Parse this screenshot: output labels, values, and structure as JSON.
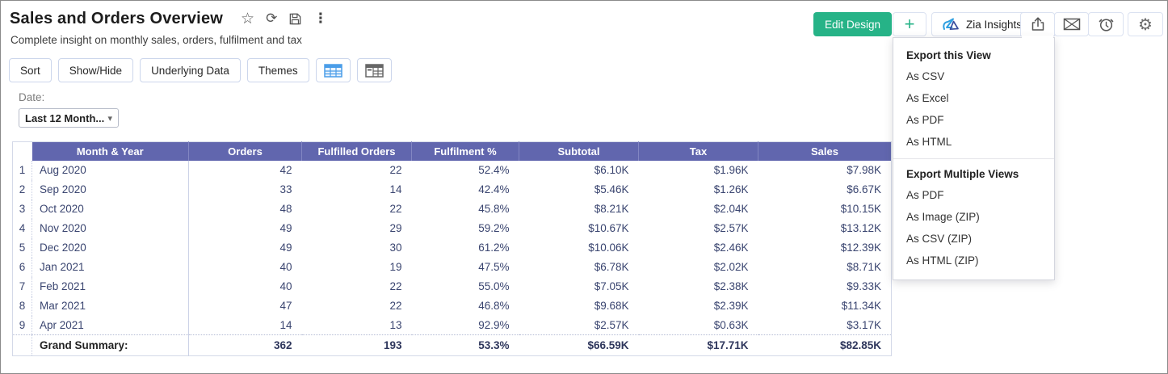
{
  "header": {
    "title": "Sales and Orders Overview",
    "subtitle": "Complete insight on monthly sales, orders, fulfilment and tax"
  },
  "icons": {
    "star": "☆",
    "refresh": "⟳",
    "kebab": "⋮",
    "gear": "⚙",
    "plus": "+",
    "caret_down": "▾"
  },
  "toolbar": {
    "buttons": [
      "Sort",
      "Show/Hide",
      "Underlying Data",
      "Themes"
    ]
  },
  "actions": {
    "edit_design_label": "Edit Design",
    "zia_label": "Zia Insights"
  },
  "filter": {
    "label": "Date:",
    "value": "Last 12 Month..."
  },
  "export_menu": {
    "sections": [
      {
        "header": "Export this View",
        "items": [
          "As CSV",
          "As Excel",
          "As PDF",
          "As HTML"
        ]
      },
      {
        "header": "Export Multiple Views",
        "items": [
          "As PDF",
          "As Image (ZIP)",
          "As CSV (ZIP)",
          "As HTML (ZIP)"
        ]
      }
    ]
  },
  "table": {
    "columns": [
      "Month & Year",
      "Orders",
      "Fulfilled Orders",
      "Fulfilment %",
      "Subtotal",
      "Tax",
      "Sales"
    ],
    "rows": [
      {
        "num": "1",
        "month": "Aug 2020",
        "orders": "42",
        "fulfilled": "22",
        "fulfilment": "52.4%",
        "subtotal": "$6.10K",
        "tax": "$1.96K",
        "sales": "$7.98K"
      },
      {
        "num": "2",
        "month": "Sep 2020",
        "orders": "33",
        "fulfilled": "14",
        "fulfilment": "42.4%",
        "subtotal": "$5.46K",
        "tax": "$1.26K",
        "sales": "$6.67K"
      },
      {
        "num": "3",
        "month": "Oct 2020",
        "orders": "48",
        "fulfilled": "22",
        "fulfilment": "45.8%",
        "subtotal": "$8.21K",
        "tax": "$2.04K",
        "sales": "$10.15K"
      },
      {
        "num": "4",
        "month": "Nov 2020",
        "orders": "49",
        "fulfilled": "29",
        "fulfilment": "59.2%",
        "subtotal": "$10.67K",
        "tax": "$2.57K",
        "sales": "$13.12K"
      },
      {
        "num": "5",
        "month": "Dec 2020",
        "orders": "49",
        "fulfilled": "30",
        "fulfilment": "61.2%",
        "subtotal": "$10.06K",
        "tax": "$2.46K",
        "sales": "$12.39K"
      },
      {
        "num": "6",
        "month": "Jan 2021",
        "orders": "40",
        "fulfilled": "19",
        "fulfilment": "47.5%",
        "subtotal": "$6.78K",
        "tax": "$2.02K",
        "sales": "$8.71K"
      },
      {
        "num": "7",
        "month": "Feb 2021",
        "orders": "40",
        "fulfilled": "22",
        "fulfilment": "55.0%",
        "subtotal": "$7.05K",
        "tax": "$2.38K",
        "sales": "$9.33K"
      },
      {
        "num": "8",
        "month": "Mar 2021",
        "orders": "47",
        "fulfilled": "22",
        "fulfilment": "46.8%",
        "subtotal": "$9.68K",
        "tax": "$2.39K",
        "sales": "$11.34K"
      },
      {
        "num": "9",
        "month": "Apr 2021",
        "orders": "14",
        "fulfilled": "13",
        "fulfilment": "92.9%",
        "subtotal": "$2.57K",
        "tax": "$0.63K",
        "sales": "$3.17K"
      }
    ],
    "summary": {
      "label": "Grand Summary:",
      "orders": "362",
      "fulfilled": "193",
      "fulfilment": "53.3%",
      "subtotal": "$66.59K",
      "tax": "$17.71K",
      "sales": "$82.85K"
    }
  },
  "colors": {
    "accent_green": "#26b387",
    "table_header_purple": "#6166ae",
    "table_text_navy": "#3a4570",
    "active_icon_blue": "#4a9de8"
  }
}
